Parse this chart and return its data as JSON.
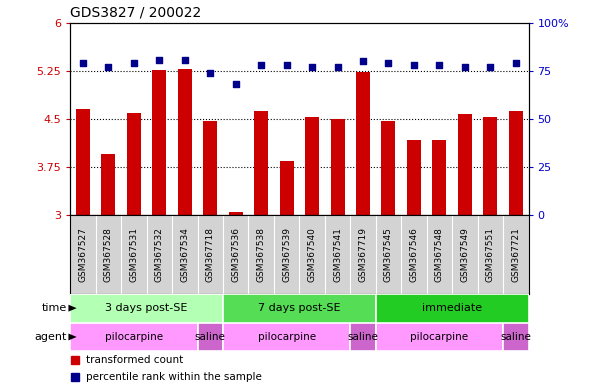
{
  "title": "GDS3827 / 200022",
  "samples": [
    "GSM367527",
    "GSM367528",
    "GSM367531",
    "GSM367532",
    "GSM367534",
    "GSM367718",
    "GSM367536",
    "GSM367538",
    "GSM367539",
    "GSM367540",
    "GSM367541",
    "GSM367719",
    "GSM367545",
    "GSM367546",
    "GSM367548",
    "GSM367549",
    "GSM367551",
    "GSM367721"
  ],
  "transformed_count": [
    4.65,
    3.95,
    4.6,
    5.27,
    5.28,
    4.47,
    3.05,
    4.63,
    3.85,
    4.53,
    4.5,
    5.23,
    4.47,
    4.17,
    4.17,
    4.58,
    4.53,
    4.63
  ],
  "percentile_rank": [
    79,
    77,
    79,
    81,
    81,
    74,
    68,
    78,
    78,
    77,
    77,
    80,
    79,
    78,
    78,
    77,
    77,
    79
  ],
  "bar_color": "#cc0000",
  "dot_color": "#00008b",
  "ylim_left": [
    3.0,
    6.0
  ],
  "ylim_right": [
    0,
    100
  ],
  "yticks_left": [
    3.0,
    3.75,
    4.5,
    5.25,
    6.0
  ],
  "ytick_labels_left": [
    "3",
    "3.75",
    "4.5",
    "5.25",
    "6"
  ],
  "yticks_right": [
    0,
    25,
    50,
    75,
    100
  ],
  "ytick_labels_right": [
    "0",
    "25",
    "50",
    "75",
    "100%"
  ],
  "grid_lines": [
    3.75,
    4.5,
    5.25
  ],
  "time_groups": [
    {
      "label": "3 days post-SE",
      "start": 0,
      "end": 5,
      "color": "#b3ffb3"
    },
    {
      "label": "7 days post-SE",
      "start": 6,
      "end": 11,
      "color": "#55dd55"
    },
    {
      "label": "immediate",
      "start": 12,
      "end": 17,
      "color": "#22cc22"
    }
  ],
  "agent_groups": [
    {
      "label": "pilocarpine",
      "start": 0,
      "end": 4,
      "color": "#ff99ff"
    },
    {
      "label": "saline",
      "start": 5,
      "end": 5,
      "color": "#cc66cc"
    },
    {
      "label": "pilocarpine",
      "start": 6,
      "end": 10,
      "color": "#ff99ff"
    },
    {
      "label": "saline",
      "start": 11,
      "end": 11,
      "color": "#cc66cc"
    },
    {
      "label": "pilocarpine",
      "start": 12,
      "end": 16,
      "color": "#ff99ff"
    },
    {
      "label": "saline",
      "start": 17,
      "end": 17,
      "color": "#cc66cc"
    }
  ],
  "legend": [
    {
      "label": "transformed count",
      "color": "#cc0000"
    },
    {
      "label": "percentile rank within the sample",
      "color": "#00008b"
    }
  ],
  "background_color": "#ffffff",
  "title_fontsize": 10,
  "bar_width": 0.55
}
